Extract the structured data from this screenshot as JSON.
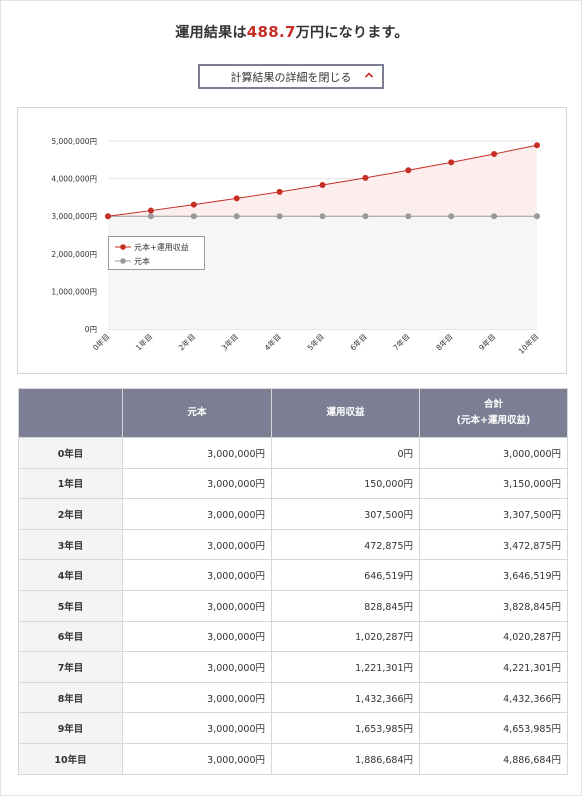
{
  "result": {
    "prefix": "運用結果は",
    "amount": "488.7",
    "suffix": "万円になります。"
  },
  "toggle": {
    "label": "計算結果の詳細を閉じる",
    "icon": "chevron-up-icon"
  },
  "colors": {
    "accent": "#c62f26",
    "header_bg": "#7c7f93",
    "principal": "#999999"
  },
  "chart_data": {
    "type": "line",
    "categories": [
      "0年目",
      "1年目",
      "2年目",
      "3年目",
      "4年目",
      "5年目",
      "6年目",
      "7年目",
      "8年目",
      "9年目",
      "10年目"
    ],
    "y_ticks": [
      "0円",
      "1,000,000円",
      "2,000,000円",
      "3,000,000円",
      "4,000,000円",
      "5,000,000円"
    ],
    "ylim": [
      0,
      5000000
    ],
    "grid": true,
    "legend_position": "left-middle",
    "series": [
      {
        "name": "元本+運用収益",
        "color": "#c62f26",
        "values": [
          3000000,
          3150000,
          3307500,
          3472875,
          3646519,
          3828845,
          4020287,
          4221301,
          4432366,
          4653985,
          4886684
        ]
      },
      {
        "name": "元本",
        "color": "#999999",
        "values": [
          3000000,
          3000000,
          3000000,
          3000000,
          3000000,
          3000000,
          3000000,
          3000000,
          3000000,
          3000000,
          3000000
        ]
      }
    ]
  },
  "table": {
    "headers": [
      "",
      "元本",
      "運用収益",
      "合計",
      "(元本+運用収益)"
    ],
    "rows": [
      {
        "year": "0年目",
        "principal": "3,000,000円",
        "profit": "0円",
        "total": "3,000,000円"
      },
      {
        "year": "1年目",
        "principal": "3,000,000円",
        "profit": "150,000円",
        "total": "3,150,000円"
      },
      {
        "year": "2年目",
        "principal": "3,000,000円",
        "profit": "307,500円",
        "total": "3,307,500円"
      },
      {
        "year": "3年目",
        "principal": "3,000,000円",
        "profit": "472,875円",
        "total": "3,472,875円"
      },
      {
        "year": "4年目",
        "principal": "3,000,000円",
        "profit": "646,519円",
        "total": "3,646,519円"
      },
      {
        "year": "5年目",
        "principal": "3,000,000円",
        "profit": "828,845円",
        "total": "3,828,845円"
      },
      {
        "year": "6年目",
        "principal": "3,000,000円",
        "profit": "1,020,287円",
        "total": "4,020,287円"
      },
      {
        "year": "7年目",
        "principal": "3,000,000円",
        "profit": "1,221,301円",
        "total": "4,221,301円"
      },
      {
        "year": "8年目",
        "principal": "3,000,000円",
        "profit": "1,432,366円",
        "total": "4,432,366円"
      },
      {
        "year": "9年目",
        "principal": "3,000,000円",
        "profit": "1,653,985円",
        "total": "4,653,985円"
      },
      {
        "year": "10年目",
        "principal": "3,000,000円",
        "profit": "1,886,684円",
        "total": "4,886,684円"
      }
    ]
  }
}
